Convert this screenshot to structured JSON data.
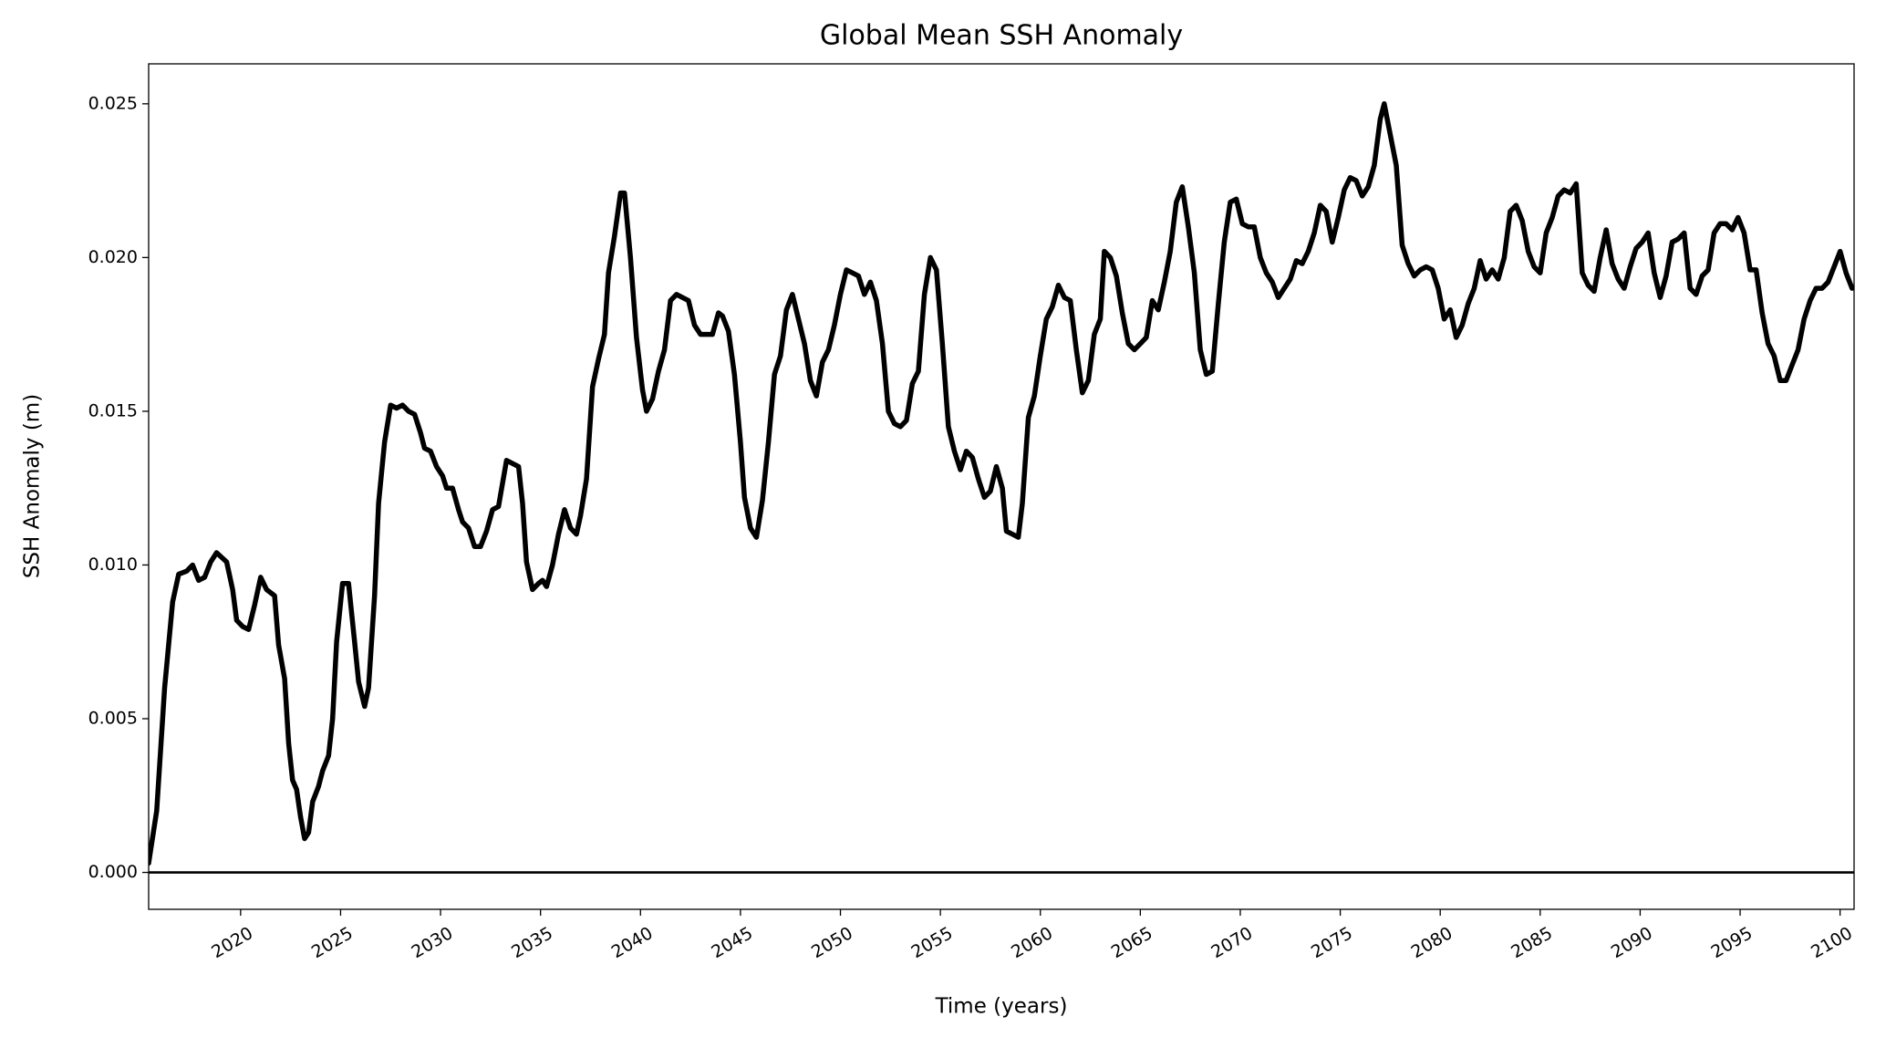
{
  "chart_data": {
    "type": "line",
    "title": "Global Mean SSH Anomaly",
    "xlabel": "Time (years)",
    "ylabel": "SSH Anomaly (m)",
    "xlim": [
      2015.4,
      2100.7
    ],
    "ylim": [
      -0.0012,
      0.0263
    ],
    "xticks": [
      2020,
      2025,
      2030,
      2035,
      2040,
      2045,
      2050,
      2055,
      2060,
      2065,
      2070,
      2075,
      2080,
      2085,
      2090,
      2095,
      2100
    ],
    "yticks": [
      {
        "value": 0,
        "label": "0.000"
      },
      0.005,
      {
        "value": 0.01,
        "label": "0.010"
      },
      0.015,
      {
        "value": 0.02,
        "label": "0.020"
      },
      0.025
    ],
    "axhline": 0,
    "series": [
      {
        "color": "#000000",
        "x": [
          2015.4,
          2015.8,
          2016.2,
          2016.6,
          2016.9,
          2017.3,
          2017.6,
          2017.9,
          2018.2,
          2018.5,
          2018.8,
          2019.3,
          2019.6,
          2019.8,
          2020.1,
          2020.4,
          2020.7,
          2021.0,
          2021.3,
          2021.5,
          2021.7,
          2021.9,
          2022.2,
          2022.4,
          2022.6,
          2022.8,
          2023.0,
          2023.2,
          2023.4,
          2023.6,
          2023.9,
          2024.1,
          2024.4,
          2024.6,
          2024.8,
          2025.1,
          2025.4,
          2025.7,
          2025.9,
          2026.2,
          2026.4,
          2026.7,
          2026.9,
          2027.2,
          2027.5,
          2027.8,
          2028.1,
          2028.4,
          2028.7,
          2029.0,
          2029.2,
          2029.5,
          2029.8,
          2030.1,
          2030.3,
          2030.6,
          2030.9,
          2031.1,
          2031.4,
          2031.7,
          2032.0,
          2032.3,
          2032.6,
          2032.9,
          2033.3,
          2033.6,
          2033.9,
          2034.1,
          2034.3,
          2034.6,
          2034.9,
          2035.1,
          2035.3,
          2035.6,
          2035.9,
          2036.2,
          2036.5,
          2036.8,
          2037.0,
          2037.3,
          2037.6,
          2037.9,
          2038.2,
          2038.4,
          2038.7,
          2039.0,
          2039.2,
          2039.5,
          2039.8,
          2040.1,
          2040.3,
          2040.6,
          2040.9,
          2041.2,
          2041.5,
          2041.8,
          2042.1,
          2042.4,
          2042.7,
          2043.0,
          2043.3,
          2043.6,
          2043.9,
          2044.1,
          2044.4,
          2044.7,
          2045.0,
          2045.2,
          2045.5,
          2045.8,
          2046.1,
          2046.4,
          2046.7,
          2047.0,
          2047.3,
          2047.6,
          2047.9,
          2048.2,
          2048.5,
          2048.8,
          2049.1,
          2049.4,
          2049.7,
          2050.0,
          2050.3,
          2050.6,
          2050.9,
          2051.2,
          2051.5,
          2051.8,
          2052.1,
          2052.4,
          2052.7,
          2053.0,
          2053.3,
          2053.6,
          2053.9,
          2054.2,
          2054.5,
          2054.8,
          2055.1,
          2055.4,
          2055.7,
          2056.0,
          2056.3,
          2056.6,
          2056.9,
          2057.2,
          2057.5,
          2057.8,
          2058.1,
          2058.3,
          2058.6,
          2058.9,
          2059.1,
          2059.4,
          2059.7,
          2060.0,
          2060.3,
          2060.6,
          2060.9,
          2061.2,
          2061.5,
          2061.8,
          2062.1,
          2062.4,
          2062.7,
          2063.0,
          2063.2,
          2063.5,
          2063.8,
          2064.1,
          2064.4,
          2064.7,
          2065.0,
          2065.3,
          2065.6,
          2065.9,
          2066.2,
          2066.5,
          2066.8,
          2067.1,
          2067.4,
          2067.7,
          2068.0,
          2068.3,
          2068.6,
          2068.9,
          2069.2,
          2069.5,
          2069.8,
          2070.1,
          2070.4,
          2070.7,
          2071.0,
          2071.3,
          2071.6,
          2071.9,
          2072.2,
          2072.5,
          2072.8,
          2073.1,
          2073.4,
          2073.7,
          2074.0,
          2074.3,
          2074.6,
          2074.9,
          2075.2,
          2075.5,
          2075.8,
          2076.1,
          2076.4,
          2076.7,
          2077.0,
          2077.2,
          2077.5,
          2077.8,
          2078.1,
          2078.4,
          2078.7,
          2079.0,
          2079.3,
          2079.6,
          2079.9,
          2080.2,
          2080.5,
          2080.8,
          2081.1,
          2081.4,
          2081.7,
          2082.0,
          2082.3,
          2082.6,
          2082.9,
          2083.2,
          2083.5,
          2083.8,
          2084.1,
          2084.4,
          2084.7,
          2085.0,
          2085.3,
          2085.6,
          2085.9,
          2086.2,
          2086.5,
          2086.8,
          2087.1,
          2087.4,
          2087.7,
          2088.0,
          2088.3,
          2088.6,
          2088.9,
          2089.2,
          2089.5,
          2089.8,
          2090.1,
          2090.4,
          2090.7,
          2091.0,
          2091.3,
          2091.6,
          2091.9,
          2092.2,
          2092.5,
          2092.8,
          2093.1,
          2093.4,
          2093.7,
          2094.0,
          2094.3,
          2094.6,
          2094.9,
          2095.2,
          2095.5,
          2095.8,
          2096.1,
          2096.4,
          2096.7,
          2097.0,
          2097.3,
          2097.6,
          2097.9,
          2098.2,
          2098.5,
          2098.8,
          2099.1,
          2099.4,
          2099.7,
          2100.0,
          2100.3,
          2100.6
        ],
        "values": [
          0.0003,
          0.002,
          0.006,
          0.0088,
          0.0097,
          0.0098,
          0.01,
          0.0095,
          0.0096,
          0.0101,
          0.0104,
          0.0101,
          0.0092,
          0.0082,
          0.008,
          0.0079,
          0.0087,
          0.0096,
          0.0092,
          0.0091,
          0.009,
          0.0074,
          0.0063,
          0.0042,
          0.003,
          0.0027,
          0.0018,
          0.0011,
          0.0013,
          0.0023,
          0.0028,
          0.0033,
          0.0038,
          0.005,
          0.0075,
          0.0094,
          0.0094,
          0.0075,
          0.0062,
          0.0054,
          0.006,
          0.009,
          0.012,
          0.014,
          0.0152,
          0.0151,
          0.0152,
          0.015,
          0.0149,
          0.0143,
          0.0138,
          0.0137,
          0.0132,
          0.0129,
          0.0125,
          0.0125,
          0.0118,
          0.0114,
          0.0112,
          0.0106,
          0.0106,
          0.0111,
          0.0118,
          0.0119,
          0.0134,
          0.0133,
          0.0132,
          0.012,
          0.0101,
          0.0092,
          0.0094,
          0.0095,
          0.0093,
          0.01,
          0.011,
          0.0118,
          0.0112,
          0.011,
          0.0116,
          0.0128,
          0.0158,
          0.0167,
          0.0175,
          0.0195,
          0.0207,
          0.0221,
          0.0221,
          0.02,
          0.0174,
          0.0157,
          0.015,
          0.0154,
          0.0163,
          0.017,
          0.0186,
          0.0188,
          0.0187,
          0.0186,
          0.0178,
          0.0175,
          0.0175,
          0.0175,
          0.0182,
          0.0181,
          0.0176,
          0.0162,
          0.014,
          0.0122,
          0.0112,
          0.0109,
          0.0121,
          0.014,
          0.0162,
          0.0168,
          0.0183,
          0.0188,
          0.018,
          0.0172,
          0.016,
          0.0155,
          0.0166,
          0.017,
          0.0178,
          0.0188,
          0.0196,
          0.0195,
          0.0194,
          0.0188,
          0.0192,
          0.0186,
          0.0172,
          0.015,
          0.0146,
          0.0145,
          0.0147,
          0.0159,
          0.0163,
          0.0188,
          0.02,
          0.0196,
          0.0172,
          0.0145,
          0.0137,
          0.0131,
          0.0137,
          0.0135,
          0.0128,
          0.0122,
          0.0124,
          0.0132,
          0.0125,
          0.0111,
          0.011,
          0.0109,
          0.012,
          0.0148,
          0.0155,
          0.0168,
          0.018,
          0.0184,
          0.0191,
          0.0187,
          0.0186,
          0.017,
          0.0156,
          0.016,
          0.0175,
          0.018,
          0.0202,
          0.02,
          0.0194,
          0.0182,
          0.0172,
          0.017,
          0.0172,
          0.0174,
          0.0186,
          0.0183,
          0.0192,
          0.0202,
          0.0218,
          0.0223,
          0.021,
          0.0195,
          0.017,
          0.0162,
          0.0163,
          0.0185,
          0.0205,
          0.0218,
          0.0219,
          0.0211,
          0.021,
          0.021,
          0.02,
          0.0195,
          0.0192,
          0.0187,
          0.019,
          0.0193,
          0.0199,
          0.0198,
          0.0202,
          0.0208,
          0.0217,
          0.0215,
          0.0205,
          0.0213,
          0.0222,
          0.0226,
          0.0225,
          0.022,
          0.0223,
          0.023,
          0.0245,
          0.025,
          0.024,
          0.023,
          0.0204,
          0.0198,
          0.0194,
          0.0196,
          0.0197,
          0.0196,
          0.019,
          0.018,
          0.0183,
          0.0174,
          0.0178,
          0.0185,
          0.019,
          0.0199,
          0.0193,
          0.0196,
          0.0193,
          0.02,
          0.0215,
          0.0217,
          0.0212,
          0.0202,
          0.0197,
          0.0195,
          0.0208,
          0.0213,
          0.022,
          0.0222,
          0.0221,
          0.0224,
          0.0195,
          0.0191,
          0.0189,
          0.02,
          0.0209,
          0.0198,
          0.0193,
          0.019,
          0.0197,
          0.0203,
          0.0205,
          0.0208,
          0.0195,
          0.0187,
          0.0194,
          0.0205,
          0.0206,
          0.0208,
          0.019,
          0.0188,
          0.0194,
          0.0196,
          0.0208,
          0.0211,
          0.0211,
          0.0209,
          0.0213,
          0.0208,
          0.0196,
          0.0196,
          0.0182,
          0.0172,
          0.0168,
          0.016,
          0.016,
          0.0165,
          0.017,
          0.018,
          0.0186,
          0.019,
          0.019,
          0.0192,
          0.0197,
          0.0202,
          0.0195,
          0.019
        ]
      }
    ]
  }
}
